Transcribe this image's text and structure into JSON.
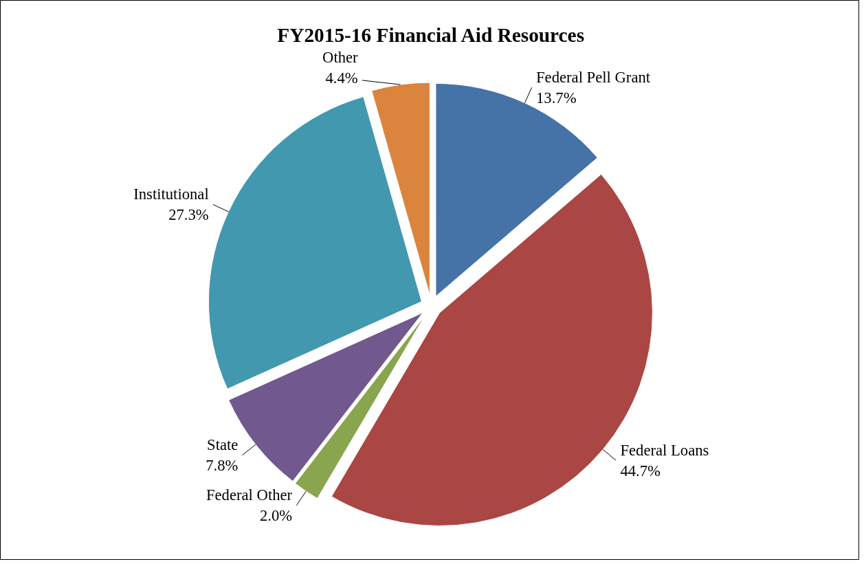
{
  "chart_data": {
    "type": "pie",
    "title": "FY2015-16 Financial Aid Resources",
    "categories": [
      "Federal Pell Grant",
      "Federal Loans",
      "Federal Other",
      "State",
      "Institutional",
      "Other"
    ],
    "values": [
      13.7,
      44.7,
      2.0,
      7.8,
      27.3,
      4.4
    ],
    "value_labels": [
      "13.7%",
      "44.7%",
      "2.0%",
      "7.8%",
      "27.3%",
      "4.4%"
    ],
    "colors": [
      "#4572a7",
      "#aa4643",
      "#89a54e",
      "#71588f",
      "#4198af",
      "#db843d"
    ]
  }
}
